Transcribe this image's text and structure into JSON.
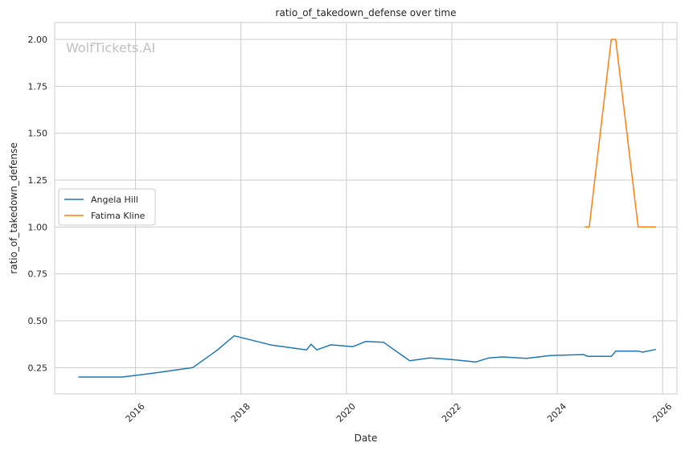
{
  "chart_data": {
    "type": "line",
    "title": "ratio_of_takedown_defense over time",
    "xlabel": "Date",
    "ylabel": "ratio_of_takedown_defense",
    "watermark": "WolfTickets.AI",
    "xlim": [
      "2014-06-20",
      "2026-04-10"
    ],
    "ylim": [
      0.11,
      2.09
    ],
    "x_ticks": [
      "2016",
      "2018",
      "2020",
      "2022",
      "2024",
      "2026"
    ],
    "y_ticks": [
      "0.25",
      "0.50",
      "0.75",
      "1.00",
      "1.25",
      "1.50",
      "1.75",
      "2.00"
    ],
    "grid": true,
    "legend_position": "center-left",
    "series": [
      {
        "name": "Angela Hill",
        "color": "#1f77b4",
        "points": [
          [
            "2014-12-01",
            0.2
          ],
          [
            "2015-10-01",
            0.2
          ],
          [
            "2016-05-01",
            0.22
          ],
          [
            "2017-02-01",
            0.25
          ],
          [
            "2017-07-15",
            0.34
          ],
          [
            "2017-11-15",
            0.42
          ],
          [
            "2018-08-01",
            0.37
          ],
          [
            "2019-04-01",
            0.345
          ],
          [
            "2019-05-01",
            0.375
          ],
          [
            "2019-06-10",
            0.345
          ],
          [
            "2019-09-15",
            0.372
          ],
          [
            "2020-02-15",
            0.362
          ],
          [
            "2020-05-15",
            0.39
          ],
          [
            "2020-09-15",
            0.385
          ],
          [
            "2021-03-15",
            0.287
          ],
          [
            "2021-08-01",
            0.302
          ],
          [
            "2022-01-01",
            0.293
          ],
          [
            "2022-06-15",
            0.28
          ],
          [
            "2022-09-15",
            0.302
          ],
          [
            "2022-12-15",
            0.307
          ],
          [
            "2023-06-01",
            0.3
          ],
          [
            "2023-11-15",
            0.315
          ],
          [
            "2024-07-01",
            0.32
          ],
          [
            "2024-08-01",
            0.31
          ],
          [
            "2025-01-10",
            0.31
          ],
          [
            "2025-02-10",
            0.338
          ],
          [
            "2025-07-15",
            0.338
          ],
          [
            "2025-08-15",
            0.333
          ],
          [
            "2025-11-15",
            0.347
          ]
        ]
      },
      {
        "name": "Fatima Kline",
        "color": "#ff7f0e",
        "points": [
          [
            "2024-07-10",
            1.0
          ],
          [
            "2024-08-10",
            1.0
          ],
          [
            "2025-01-10",
            2.0
          ],
          [
            "2025-02-10",
            2.0
          ],
          [
            "2025-07-15",
            1.0
          ],
          [
            "2025-11-15",
            1.0
          ]
        ]
      }
    ]
  }
}
